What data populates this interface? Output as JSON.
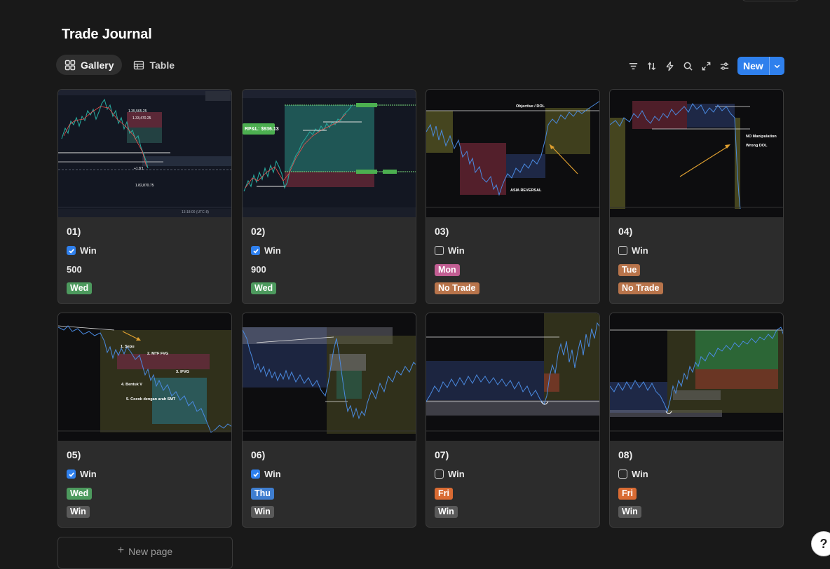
{
  "page": {
    "title": "Trade Journal"
  },
  "views": [
    {
      "label": "Gallery",
      "icon": "gallery-icon",
      "active": true
    },
    {
      "label": "Table",
      "icon": "table-icon",
      "active": false
    }
  ],
  "toolbar": {
    "icons": [
      "filter-icon",
      "sort-icon",
      "automation-icon",
      "search-icon",
      "expand-icon",
      "settings-icon"
    ],
    "new_label": "New"
  },
  "colors": {
    "accent": "#2f80ed",
    "tag_wed": "#4d9a5e",
    "tag_thu": "#3f7ed0",
    "tag_mon": "#c25e93",
    "tag_tue": "#b8744b",
    "tag_fri": "#d96b33",
    "tag_no_trade": "#b8744b",
    "tag_win": "#5a5a5a"
  },
  "cards": [
    {
      "title": "01)",
      "win_label": "Win",
      "win_checked": true,
      "value": "500",
      "tag": "Wed"
    },
    {
      "title": "02)",
      "win_label": "Win",
      "win_checked": true,
      "value": "900",
      "tag": "Wed"
    },
    {
      "title": "03)",
      "win_label": "Win",
      "win_checked": false,
      "tag": "Mon",
      "tag2": "No Trade"
    },
    {
      "title": "04)",
      "win_label": "Win",
      "win_checked": false,
      "tag": "Tue",
      "tag2": "No Trade"
    },
    {
      "title": "05)",
      "win_label": "Win",
      "win_checked": true,
      "tag": "Wed",
      "tag2": "Win"
    },
    {
      "title": "06)",
      "win_label": "Win",
      "win_checked": true,
      "tag": "Thu",
      "tag2": "Win"
    },
    {
      "title": "07)",
      "win_label": "Win",
      "win_checked": false,
      "tag": "Fri",
      "tag2": "Win"
    },
    {
      "title": "08)",
      "win_label": "Win",
      "win_checked": false,
      "tag": "Fri",
      "tag2": "Win"
    }
  ],
  "thumbnails": {
    "card1": {
      "labels": [
        "1.35,565.25",
        "1.33,470.25",
        "+1.8:1",
        "1.82,870.75"
      ],
      "timezone": "13:18:00 (UTC-8)"
    },
    "card2": {
      "labels": [
        "RP&L: $936.13"
      ]
    },
    "card3": {
      "labels": [
        "Objective / DOL",
        "ASIA REVERSAL"
      ]
    },
    "card4": {
      "labels": [
        "NO Manipulation",
        "Wrong DOL"
      ]
    },
    "card5": {
      "labels": [
        "1. Sepu",
        "2. MTF FVG",
        "3. IFVG",
        "4. Bentuk V",
        "5. Cocok dengan arah SMT"
      ]
    }
  },
  "footer": {
    "new_page_label": "New page",
    "help_label": "?"
  }
}
